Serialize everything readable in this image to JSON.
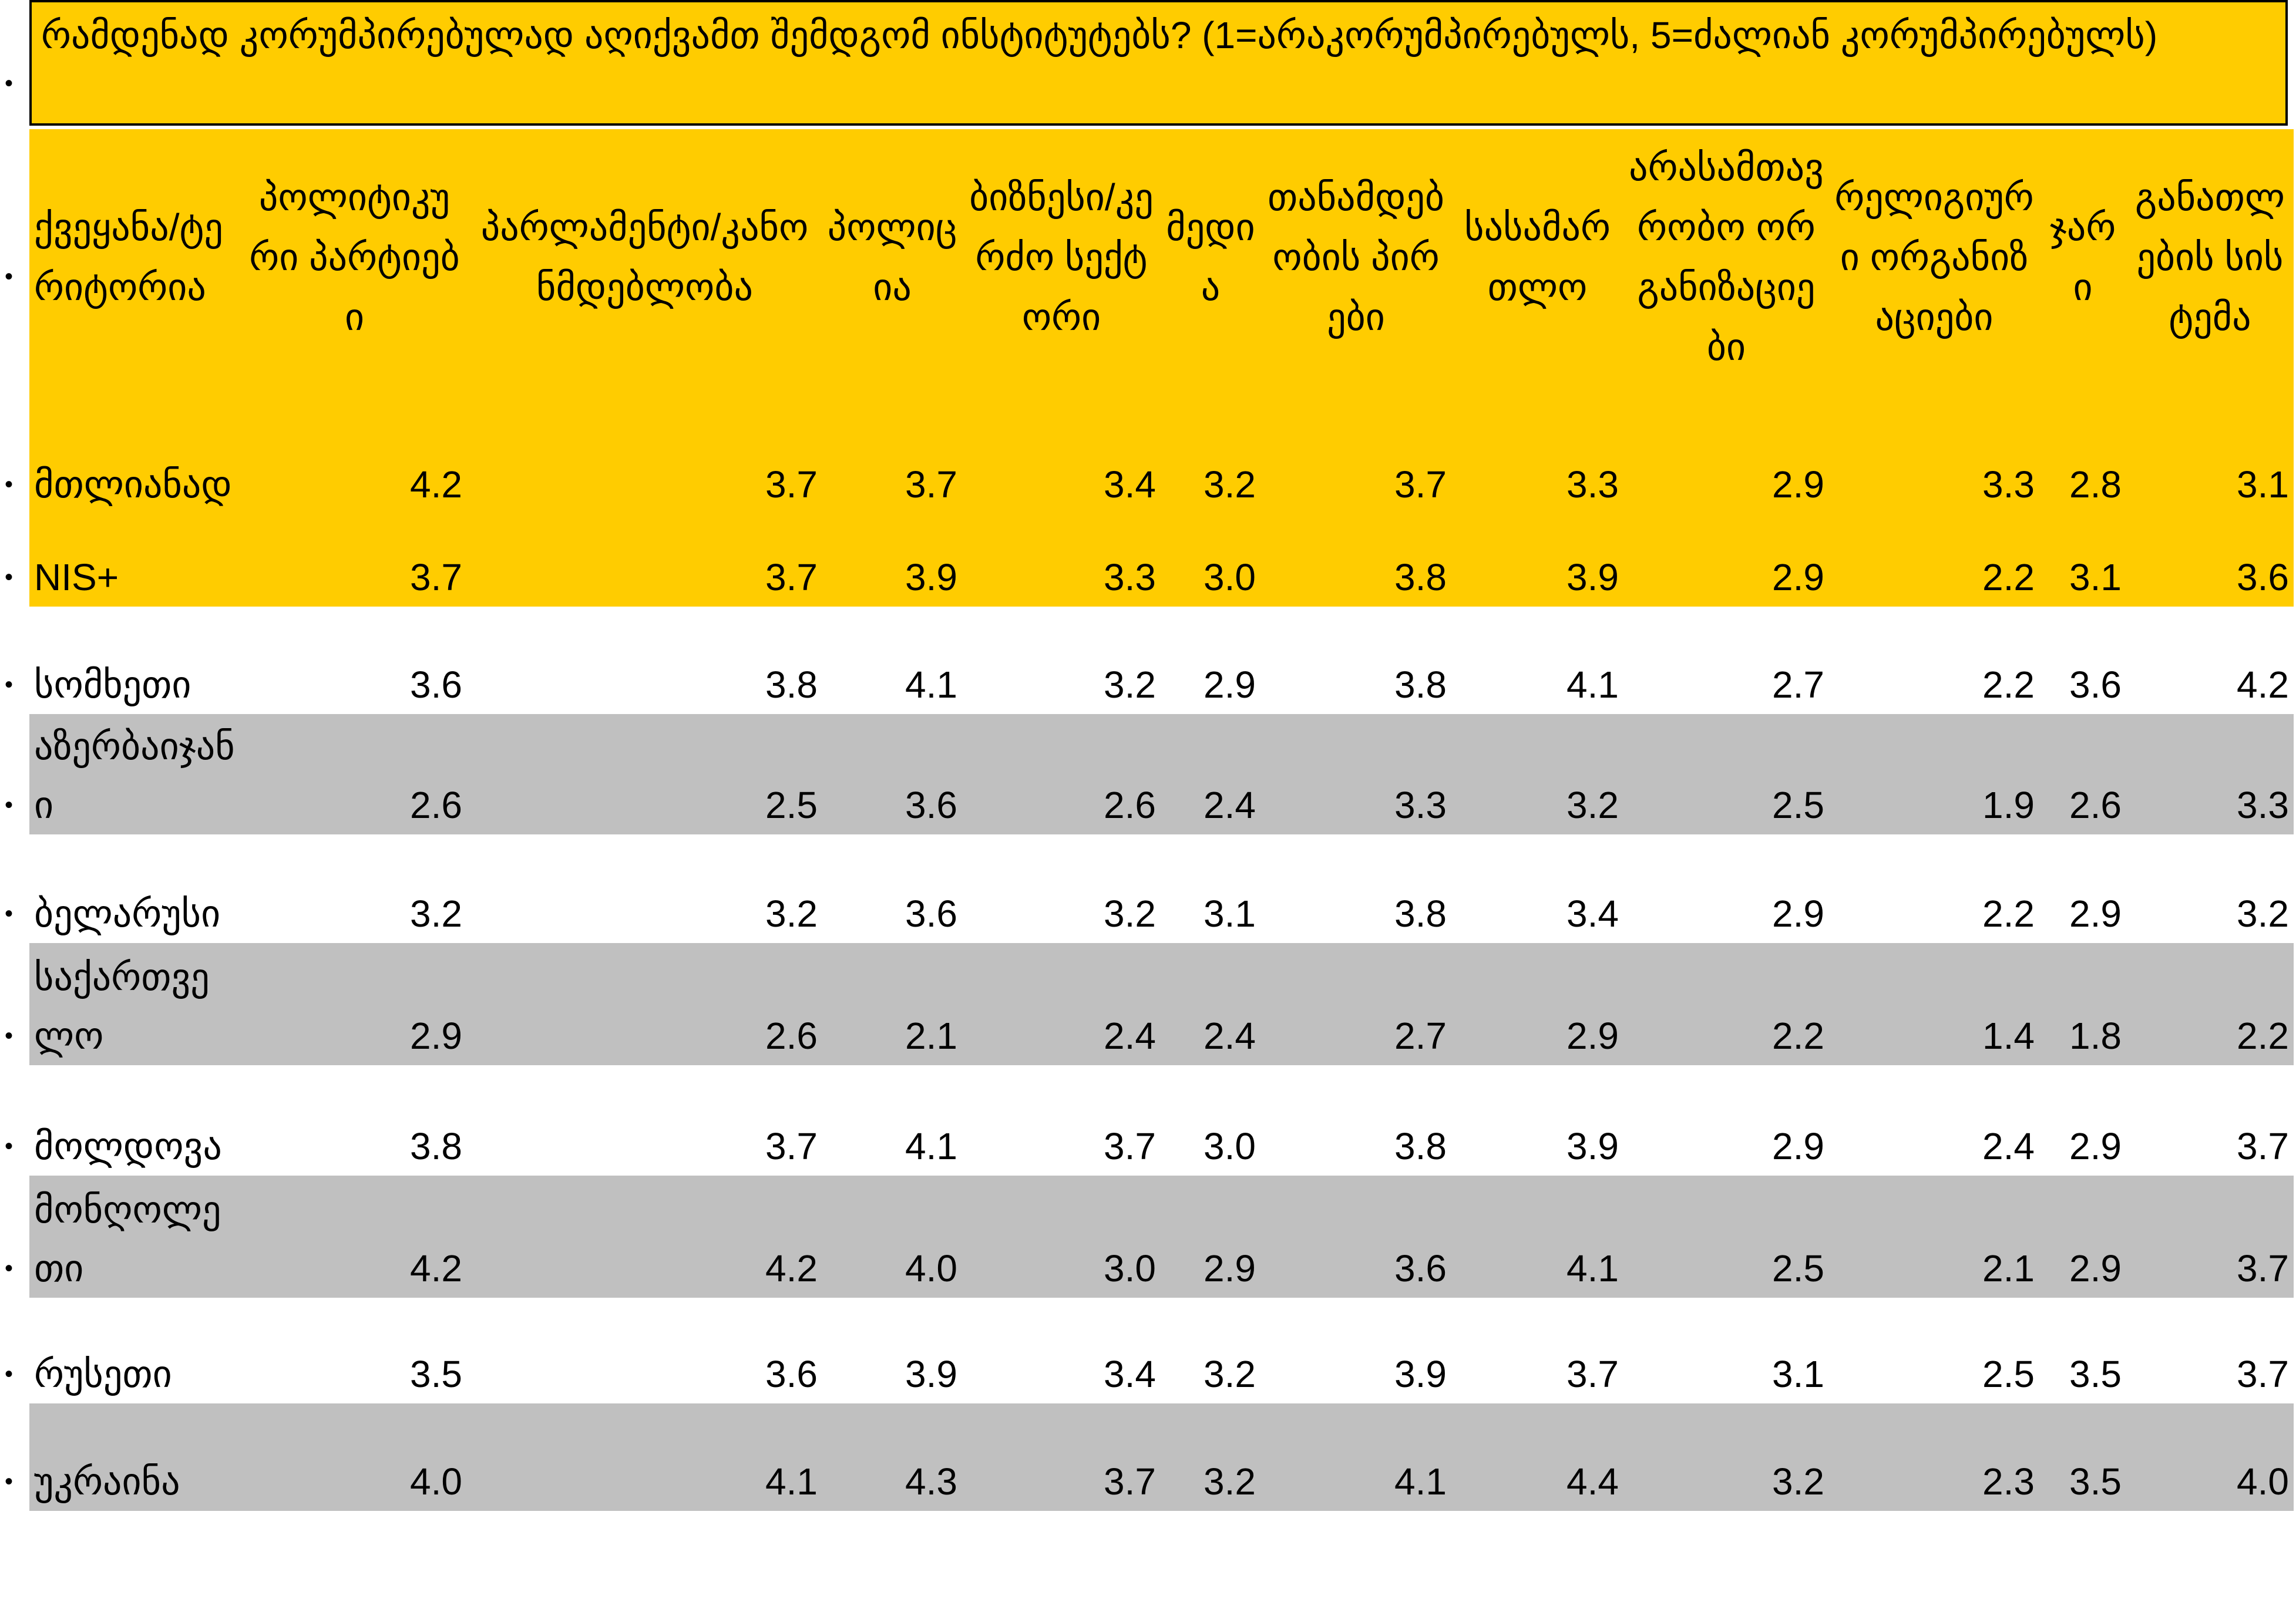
{
  "title": "რამდენად კორუმპირებულად აღიქვამთ შემდგომ ინსტიტუტებს? (1=არაკორუმპირებულს, 5=ძალიან კორუმპირებულს)",
  "table": {
    "header": [
      "ქვეყანა/ტერიტორია",
      "პოლიტიკური პარტიები",
      "პარლამენტი/კანონმდებლობა",
      "პოლიცია",
      "ბიზნესი/კერძო სექტორი",
      "მედია",
      "თანამდებობის პირები",
      "სასამართლო",
      "არასამთავრობო ორგანიზაციები",
      "რელიგიური ორგანიზაციები",
      "ჯარი",
      "განათლების სისტემა"
    ],
    "rows": [
      [
        "მთლიანად",
        "4.2",
        "3.7",
        "3.7",
        "3.4",
        "3.2",
        "3.7",
        "3.3",
        "2.9",
        "3.3",
        "2.8",
        "3.1"
      ],
      [
        "NIS+",
        "3.7",
        "3.7",
        "3.9",
        "3.3",
        "3.0",
        "3.8",
        "3.9",
        "2.9",
        "2.2",
        "3.1",
        "3.6"
      ],
      [
        "სომხეთი",
        "3.6",
        "3.8",
        "4.1",
        "3.2",
        "2.9",
        "3.8",
        "4.1",
        "2.7",
        "2.2",
        "3.6",
        "4.2"
      ],
      [
        "აზერბაიჯანი",
        "2.6",
        "2.5",
        "3.6",
        "2.6",
        "2.4",
        "3.3",
        "3.2",
        "2.5",
        "1.9",
        "2.6",
        "3.3"
      ],
      [
        "ბელარუსი",
        "3.2",
        "3.2",
        "3.6",
        "3.2",
        "3.1",
        "3.8",
        "3.4",
        "2.9",
        "2.2",
        "2.9",
        "3.2"
      ],
      [
        "საქართველო",
        "2.9",
        "2.6",
        "2.1",
        "2.4",
        "2.4",
        "2.7",
        "2.9",
        "2.2",
        "1.4",
        "1.8",
        "2.2"
      ],
      [
        "მოლდოვა",
        "3.8",
        "3.7",
        "4.1",
        "3.7",
        "3.0",
        "3.8",
        "3.9",
        "2.9",
        "2.4",
        "2.9",
        "3.7"
      ],
      [
        "მონღოლეთი",
        "4.2",
        "4.2",
        "4.0",
        "3.0",
        "2.9",
        "3.6",
        "4.1",
        "2.5",
        "2.1",
        "2.9",
        "3.7"
      ],
      [
        "რუსეთი",
        "3.5",
        "3.6",
        "3.9",
        "3.4",
        "3.2",
        "3.9",
        "3.7",
        "3.1",
        "2.5",
        "3.5",
        "3.7"
      ],
      [
        "უკრაინა",
        "4.0",
        "4.1",
        "4.3",
        "3.7",
        "3.2",
        "4.1",
        "4.4",
        "3.2",
        "2.3",
        "3.5",
        "4.0"
      ]
    ]
  }
}
